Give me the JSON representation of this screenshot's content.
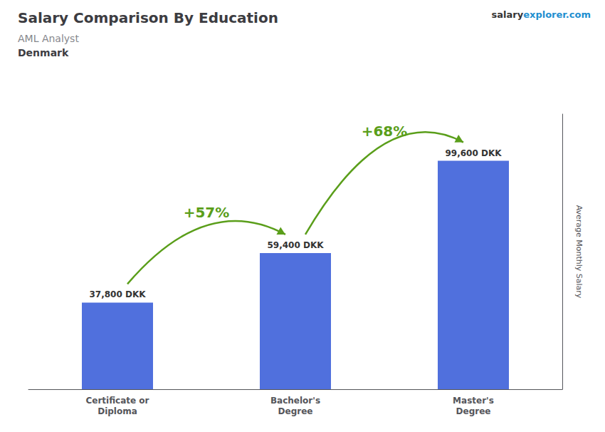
{
  "chart_data": {
    "type": "bar",
    "title": "Salary Comparison By Education",
    "subtitle": [
      "AML Analyst",
      "Denmark"
    ],
    "source": [
      "salary",
      "explorer.com"
    ],
    "ylabel": "Average Monthly Salary",
    "categories": [
      "Certificate or\nDiploma",
      "Bachelor's\nDegree",
      "Master's\nDegree"
    ],
    "values": [
      37800,
      59400,
      99600
    ],
    "value_labels": [
      "37,800 DKK",
      "59,400 DKK",
      "99,600 DKK"
    ],
    "data_labels": true,
    "annotations": [
      "+57%",
      "+68%"
    ],
    "ylim": [
      0,
      120000
    ],
    "tick_labels": "x",
    "grid": false
  }
}
